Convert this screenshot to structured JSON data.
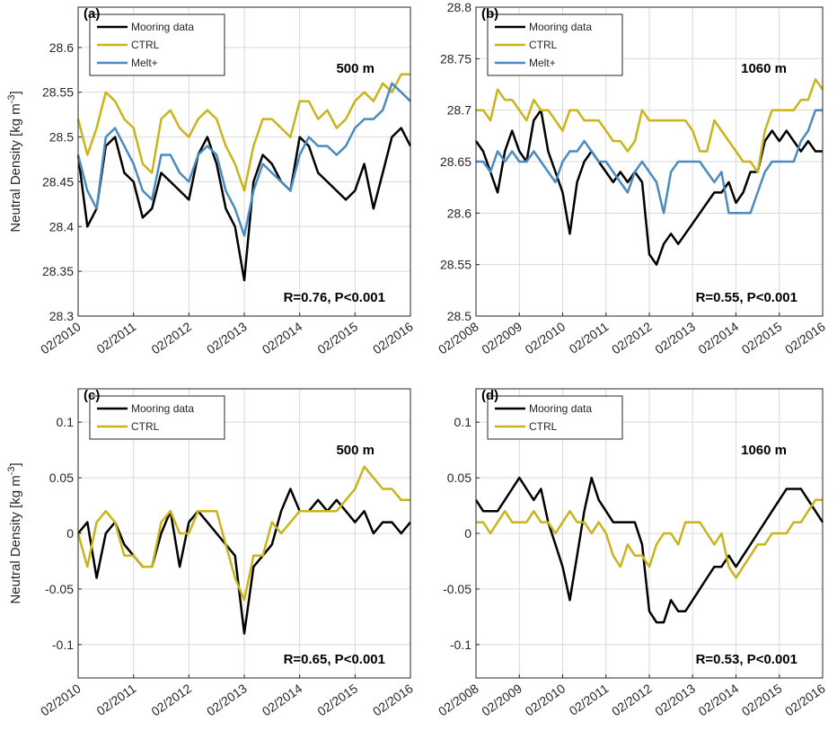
{
  "chart_data": [
    {
      "type": "line",
      "panel_label": "(a)",
      "ylabel": {
        "text": "Neutral Density [kg m",
        "superscript": "-3",
        "close": "]"
      },
      "annotations": [
        "500 m",
        "R=0.76, P<0.001"
      ],
      "x": [
        "2010-02",
        "2010-04",
        "2010-06",
        "2010-08",
        "2010-10",
        "2010-12",
        "2011-02",
        "2011-04",
        "2011-06",
        "2011-08",
        "2011-10",
        "2011-12",
        "2012-02",
        "2012-04",
        "2012-06",
        "2012-08",
        "2012-10",
        "2012-12",
        "2013-02",
        "2013-04",
        "2013-06",
        "2013-08",
        "2013-10",
        "2013-12",
        "2014-02",
        "2014-04",
        "2014-06",
        "2014-08",
        "2014-10",
        "2014-12",
        "2015-02",
        "2015-04",
        "2015-06",
        "2015-08",
        "2015-10",
        "2015-12",
        "2016-02"
      ],
      "xlim": [
        "2010-02",
        "2016-02"
      ],
      "xticks": [
        {
          "value": "2010-02",
          "label": "02/2010"
        },
        {
          "value": "2011-02",
          "label": "02/2011"
        },
        {
          "value": "2012-02",
          "label": "02/2012"
        },
        {
          "value": "2013-02",
          "label": "02/2013"
        },
        {
          "value": "2014-02",
          "label": "02/2014"
        },
        {
          "value": "2015-02",
          "label": "02/2015"
        },
        {
          "value": "2016-02",
          "label": "02/2016"
        }
      ],
      "ylim": [
        28.3,
        28.645
      ],
      "yticks": [
        28.3,
        28.35,
        28.4,
        28.45,
        28.5,
        28.55,
        28.6
      ],
      "grid": true,
      "legend": "upper left",
      "series": [
        {
          "name": "Mooring data",
          "color": "#000000",
          "values": [
            28.48,
            28.4,
            28.42,
            28.49,
            28.5,
            28.46,
            28.45,
            28.41,
            28.42,
            28.46,
            28.45,
            28.44,
            28.43,
            28.48,
            28.5,
            28.47,
            28.42,
            28.4,
            28.34,
            28.45,
            28.48,
            28.47,
            28.45,
            28.44,
            28.5,
            28.49,
            28.46,
            28.45,
            28.44,
            28.43,
            28.44,
            28.47,
            28.42,
            28.46,
            28.5,
            28.51,
            28.49
          ]
        },
        {
          "name": "CTRL",
          "color": "#c9b41c",
          "values": [
            28.52,
            28.48,
            28.51,
            28.55,
            28.54,
            28.52,
            28.51,
            28.47,
            28.46,
            28.52,
            28.53,
            28.51,
            28.5,
            28.52,
            28.53,
            28.52,
            28.49,
            28.47,
            28.44,
            28.49,
            28.52,
            28.52,
            28.51,
            28.5,
            28.54,
            28.54,
            28.52,
            28.53,
            28.51,
            28.52,
            28.54,
            28.55,
            28.54,
            28.56,
            28.55,
            28.57,
            28.57
          ]
        },
        {
          "name": "Melt+",
          "color": "#4a8bc2",
          "values": [
            28.48,
            28.44,
            28.42,
            28.5,
            28.51,
            28.49,
            28.47,
            28.44,
            28.43,
            28.48,
            28.48,
            28.46,
            28.45,
            28.48,
            28.49,
            28.48,
            28.44,
            28.42,
            28.39,
            28.44,
            28.47,
            28.46,
            28.45,
            28.44,
            28.48,
            28.5,
            28.49,
            28.49,
            28.48,
            28.49,
            28.51,
            28.52,
            28.52,
            28.53,
            28.56,
            28.55,
            28.54
          ]
        }
      ]
    },
    {
      "type": "line",
      "panel_label": "(b)",
      "annotations": [
        "1060 m",
        "R=0.55, P<0.001"
      ],
      "x": [
        "2008-02",
        "2008-04",
        "2008-06",
        "2008-08",
        "2008-10",
        "2008-12",
        "2009-02",
        "2009-04",
        "2009-06",
        "2009-08",
        "2009-10",
        "2009-12",
        "2010-02",
        "2010-04",
        "2010-06",
        "2010-08",
        "2010-10",
        "2010-12",
        "2011-02",
        "2011-04",
        "2011-06",
        "2011-08",
        "2011-10",
        "2011-12",
        "2012-02",
        "2012-04",
        "2012-06",
        "2012-08",
        "2012-10",
        "2012-12",
        "2013-02",
        "2013-04",
        "2013-06",
        "2013-08",
        "2013-10",
        "2013-12",
        "2014-02",
        "2014-04",
        "2014-06",
        "2014-08",
        "2014-10",
        "2014-12",
        "2015-02",
        "2015-04",
        "2015-06",
        "2015-08",
        "2015-10",
        "2015-12",
        "2016-02"
      ],
      "xlim": [
        "2008-02",
        "2016-02"
      ],
      "xticks": [
        {
          "value": "2008-02",
          "label": "02/2008"
        },
        {
          "value": "2009-02",
          "label": "02/2009"
        },
        {
          "value": "2010-02",
          "label": "02/2010"
        },
        {
          "value": "2011-02",
          "label": "02/2011"
        },
        {
          "value": "2012-02",
          "label": "02/2012"
        },
        {
          "value": "2013-02",
          "label": "02/2013"
        },
        {
          "value": "2014-02",
          "label": "02/2014"
        },
        {
          "value": "2015-02",
          "label": "02/2015"
        },
        {
          "value": "2016-02",
          "label": "02/2016"
        }
      ],
      "ylim": [
        28.5,
        28.8
      ],
      "yticks": [
        28.5,
        28.55,
        28.6,
        28.65,
        28.7,
        28.75,
        28.8
      ],
      "grid": true,
      "legend": "upper left",
      "series": [
        {
          "name": "Mooring data",
          "color": "#000000",
          "values": [
            28.67,
            28.66,
            28.64,
            28.62,
            28.66,
            28.68,
            28.66,
            28.65,
            28.69,
            28.7,
            28.66,
            28.64,
            28.62,
            28.58,
            28.63,
            28.65,
            28.66,
            28.65,
            28.64,
            28.63,
            28.64,
            28.63,
            28.64,
            28.63,
            28.56,
            28.55,
            28.57,
            28.58,
            28.57,
            28.58,
            28.59,
            28.6,
            28.61,
            28.62,
            28.62,
            28.63,
            28.61,
            28.62,
            28.64,
            28.64,
            28.67,
            28.68,
            28.67,
            28.68,
            28.67,
            28.66,
            28.67,
            28.66,
            28.66
          ]
        },
        {
          "name": "CTRL",
          "color": "#c9b41c",
          "values": [
            28.7,
            28.7,
            28.69,
            28.72,
            28.71,
            28.71,
            28.7,
            28.69,
            28.71,
            28.7,
            28.7,
            28.69,
            28.68,
            28.7,
            28.7,
            28.69,
            28.69,
            28.69,
            28.68,
            28.67,
            28.67,
            28.66,
            28.67,
            28.7,
            28.69,
            28.69,
            28.69,
            28.69,
            28.69,
            28.69,
            28.68,
            28.66,
            28.66,
            28.69,
            28.68,
            28.67,
            28.66,
            28.65,
            28.65,
            28.64,
            28.68,
            28.7,
            28.7,
            28.7,
            28.7,
            28.71,
            28.71,
            28.73,
            28.72
          ]
        },
        {
          "name": "Melt+",
          "color": "#4a8bc2",
          "values": [
            28.65,
            28.65,
            28.64,
            28.66,
            28.65,
            28.66,
            28.65,
            28.65,
            28.66,
            28.65,
            28.64,
            28.63,
            28.65,
            28.66,
            28.66,
            28.67,
            28.66,
            28.65,
            28.65,
            28.64,
            28.63,
            28.62,
            28.64,
            28.65,
            28.64,
            28.63,
            28.6,
            28.64,
            28.65,
            28.65,
            28.65,
            28.65,
            28.64,
            28.63,
            28.64,
            28.6,
            28.6,
            28.6,
            28.6,
            28.62,
            28.64,
            28.65,
            28.65,
            28.65,
            28.65,
            28.67,
            28.68,
            28.7,
            28.7
          ]
        }
      ]
    },
    {
      "type": "line",
      "panel_label": "(c)",
      "ylabel": {
        "text": "Neutral Density [kg m",
        "superscript": "-3",
        "close": "]"
      },
      "annotations": [
        "500 m",
        "R=0.65, P<0.001"
      ],
      "x": [
        "2010-02",
        "2010-04",
        "2010-06",
        "2010-08",
        "2010-10",
        "2010-12",
        "2011-02",
        "2011-04",
        "2011-06",
        "2011-08",
        "2011-10",
        "2011-12",
        "2012-02",
        "2012-04",
        "2012-06",
        "2012-08",
        "2012-10",
        "2012-12",
        "2013-02",
        "2013-04",
        "2013-06",
        "2013-08",
        "2013-10",
        "2013-12",
        "2014-02",
        "2014-04",
        "2014-06",
        "2014-08",
        "2014-10",
        "2014-12",
        "2015-02",
        "2015-04",
        "2015-06",
        "2015-08",
        "2015-10",
        "2015-12",
        "2016-02"
      ],
      "xlim": [
        "2010-02",
        "2016-02"
      ],
      "xticks": [
        {
          "value": "2010-02",
          "label": "02/2010"
        },
        {
          "value": "2011-02",
          "label": "02/2011"
        },
        {
          "value": "2012-02",
          "label": "02/2012"
        },
        {
          "value": "2013-02",
          "label": "02/2013"
        },
        {
          "value": "2014-02",
          "label": "02/2014"
        },
        {
          "value": "2015-02",
          "label": "02/2015"
        },
        {
          "value": "2016-02",
          "label": "02/2016"
        }
      ],
      "ylim": [
        -0.13,
        0.13
      ],
      "yticks": [
        -0.1,
        -0.05,
        0,
        0.05,
        0.1
      ],
      "grid": true,
      "legend": "upper left",
      "series": [
        {
          "name": "Mooring data",
          "color": "#000000",
          "values": [
            0,
            0.01,
            -0.04,
            0,
            0.01,
            -0.01,
            -0.02,
            -0.03,
            -0.03,
            0,
            0.02,
            -0.03,
            0.01,
            0.02,
            0.01,
            0,
            -0.01,
            -0.02,
            -0.09,
            -0.03,
            -0.02,
            -0.01,
            0.02,
            0.04,
            0.02,
            0.02,
            0.03,
            0.02,
            0.03,
            0.02,
            0.01,
            0.02,
            0,
            0.01,
            0.01,
            0,
            0.01
          ]
        },
        {
          "name": "CTRL",
          "color": "#c9b41c",
          "values": [
            0,
            -0.03,
            0.01,
            0.02,
            0.01,
            -0.02,
            -0.02,
            -0.03,
            -0.03,
            0.01,
            0.02,
            0,
            0,
            0.02,
            0.02,
            0.02,
            -0.01,
            -0.04,
            -0.06,
            -0.02,
            -0.02,
            0.01,
            0,
            0.01,
            0.02,
            0.02,
            0.02,
            0.02,
            0.02,
            0.03,
            0.04,
            0.06,
            0.05,
            0.04,
            0.04,
            0.03,
            0.03
          ]
        }
      ]
    },
    {
      "type": "line",
      "panel_label": "(d)",
      "annotations": [
        "1060 m",
        "R=0.53, P<0.001"
      ],
      "x": [
        "2008-02",
        "2008-04",
        "2008-06",
        "2008-08",
        "2008-10",
        "2008-12",
        "2009-02",
        "2009-04",
        "2009-06",
        "2009-08",
        "2009-10",
        "2009-12",
        "2010-02",
        "2010-04",
        "2010-06",
        "2010-08",
        "2010-10",
        "2010-12",
        "2011-02",
        "2011-04",
        "2011-06",
        "2011-08",
        "2011-10",
        "2011-12",
        "2012-02",
        "2012-04",
        "2012-06",
        "2012-08",
        "2012-10",
        "2012-12",
        "2013-02",
        "2013-04",
        "2013-06",
        "2013-08",
        "2013-10",
        "2013-12",
        "2014-02",
        "2014-04",
        "2014-06",
        "2014-08",
        "2014-10",
        "2014-12",
        "2015-02",
        "2015-04",
        "2015-06",
        "2015-08",
        "2015-10",
        "2015-12",
        "2016-02"
      ],
      "xlim": [
        "2008-02",
        "2016-02"
      ],
      "xticks": [
        {
          "value": "2008-02",
          "label": "02/2008"
        },
        {
          "value": "2009-02",
          "label": "02/2009"
        },
        {
          "value": "2010-02",
          "label": "02/2010"
        },
        {
          "value": "2011-02",
          "label": "02/2011"
        },
        {
          "value": "2012-02",
          "label": "02/2012"
        },
        {
          "value": "2013-02",
          "label": "02/2013"
        },
        {
          "value": "2014-02",
          "label": "02/2014"
        },
        {
          "value": "2015-02",
          "label": "02/2015"
        },
        {
          "value": "2016-02",
          "label": "02/2016"
        }
      ],
      "ylim": [
        -0.13,
        0.13
      ],
      "yticks": [
        -0.1,
        -0.05,
        0,
        0.05,
        0.1
      ],
      "grid": true,
      "legend": "upper left",
      "series": [
        {
          "name": "Mooring data",
          "color": "#000000",
          "values": [
            0.03,
            0.02,
            0.02,
            0.02,
            0.03,
            0.04,
            0.05,
            0.04,
            0.03,
            0.04,
            0.01,
            -0.01,
            -0.03,
            -0.06,
            -0.02,
            0.02,
            0.05,
            0.03,
            0.02,
            0.01,
            0.01,
            0.01,
            0.01,
            -0.01,
            -0.07,
            -0.08,
            -0.08,
            -0.06,
            -0.07,
            -0.07,
            -0.06,
            -0.05,
            -0.04,
            -0.03,
            -0.03,
            -0.02,
            -0.03,
            -0.02,
            -0.01,
            0,
            0.01,
            0.02,
            0.03,
            0.04,
            0.04,
            0.04,
            0.03,
            0.02,
            0.01
          ]
        },
        {
          "name": "CTRL",
          "color": "#c9b41c",
          "values": [
            0.01,
            0.01,
            0,
            0.01,
            0.02,
            0.01,
            0.01,
            0.01,
            0.02,
            0.01,
            0.01,
            0,
            0.01,
            0.02,
            0.01,
            0.01,
            0,
            0.01,
            0,
            -0.02,
            -0.03,
            -0.01,
            -0.02,
            -0.02,
            -0.03,
            -0.01,
            0,
            0,
            -0.01,
            0.01,
            0.01,
            0.01,
            0,
            -0.01,
            0,
            -0.03,
            -0.04,
            -0.03,
            -0.02,
            -0.01,
            -0.01,
            0,
            0,
            0,
            0.01,
            0.01,
            0.02,
            0.03,
            0.03
          ]
        }
      ]
    }
  ]
}
